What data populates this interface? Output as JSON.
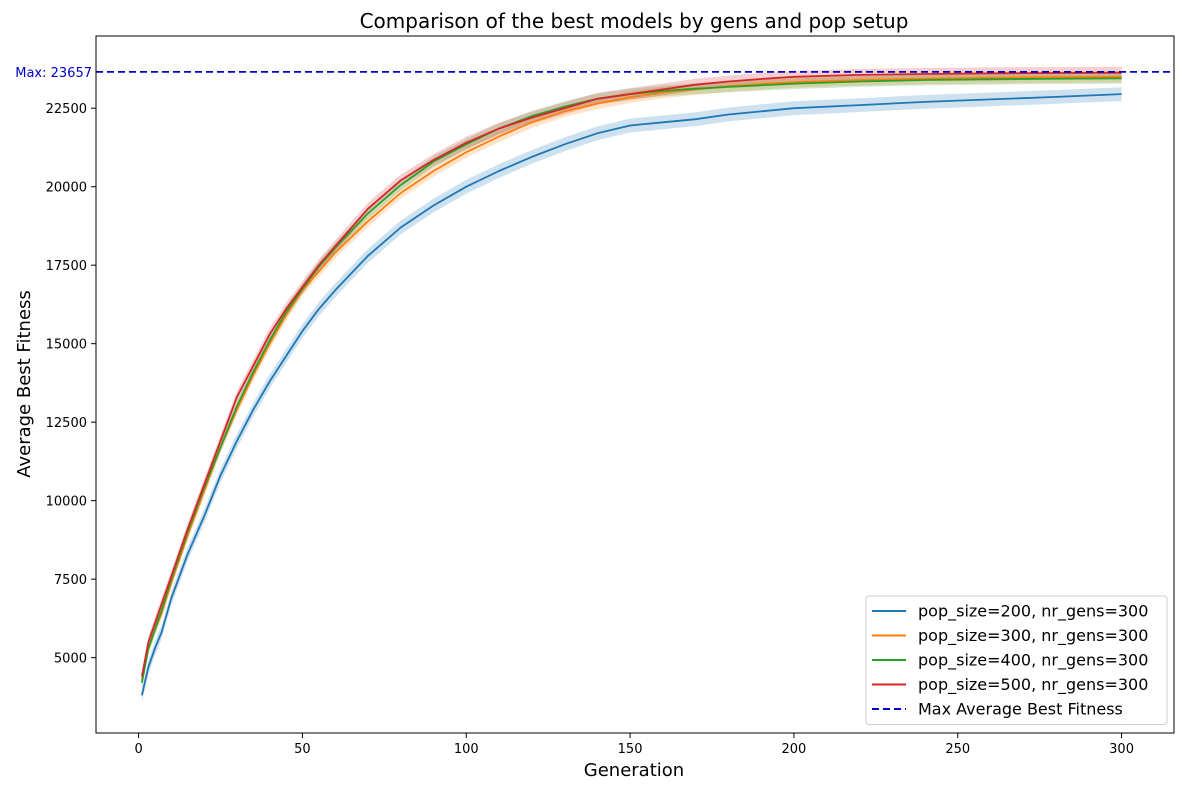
{
  "chart_data": {
    "type": "line",
    "title": "Comparison of the best models by gens and pop setup",
    "xlabel": "Generation",
    "ylabel": "Average Best Fitness",
    "xlim": [
      -13,
      316
    ],
    "ylim": [
      2600,
      24800
    ],
    "xticks": [
      0,
      50,
      100,
      150,
      200,
      250,
      300
    ],
    "yticks": [
      5000,
      7500,
      10000,
      12500,
      15000,
      17500,
      20000,
      22500
    ],
    "grid": false,
    "legend_position": "lower-right",
    "max_line": {
      "label": "Max Average Best Fitness",
      "value": 23657,
      "text": "Max: 23657",
      "color": "#0000cc",
      "style": "dashed"
    },
    "series": [
      {
        "name": "pop_size=200, nr_gens=300",
        "color": "#1f77b4",
        "band": 220,
        "x": [
          1,
          3,
          5,
          7,
          10,
          15,
          20,
          25,
          30,
          35,
          40,
          45,
          50,
          55,
          60,
          70,
          80,
          90,
          100,
          110,
          120,
          130,
          140,
          150,
          160,
          170,
          180,
          190,
          200,
          220,
          240,
          260,
          280,
          300
        ],
        "y": [
          3800,
          4700,
          5300,
          5800,
          6900,
          8300,
          9500,
          10800,
          11900,
          12900,
          13800,
          14600,
          15400,
          16100,
          16700,
          17800,
          18700,
          19400,
          20000,
          20500,
          20950,
          21350,
          21700,
          21950,
          22050,
          22150,
          22300,
          22400,
          22500,
          22600,
          22700,
          22780,
          22860,
          22950
        ]
      },
      {
        "name": "pop_size=300, nr_gens=300",
        "color": "#ff7f0e",
        "band": 180,
        "x": [
          1,
          3,
          5,
          7,
          10,
          15,
          20,
          25,
          30,
          35,
          40,
          45,
          50,
          55,
          60,
          70,
          80,
          90,
          100,
          110,
          120,
          130,
          140,
          150,
          160,
          170,
          180,
          190,
          200,
          220,
          240,
          260,
          280,
          300
        ],
        "y": [
          4300,
          5300,
          5900,
          6400,
          7400,
          8900,
          10300,
          11700,
          12900,
          14000,
          15000,
          15900,
          16700,
          17300,
          17900,
          18900,
          19800,
          20500,
          21100,
          21600,
          22050,
          22400,
          22650,
          22850,
          23000,
          23100,
          23200,
          23270,
          23330,
          23400,
          23440,
          23470,
          23490,
          23500
        ]
      },
      {
        "name": "pop_size=400, nr_gens=300",
        "color": "#2ca02c",
        "band": 170,
        "x": [
          1,
          3,
          5,
          7,
          10,
          15,
          20,
          25,
          30,
          35,
          40,
          45,
          50,
          55,
          60,
          70,
          80,
          90,
          100,
          110,
          120,
          130,
          140,
          150,
          160,
          170,
          180,
          190,
          200,
          220,
          240,
          260,
          280,
          300
        ],
        "y": [
          4200,
          5300,
          5900,
          6500,
          7500,
          9000,
          10400,
          11700,
          13000,
          14100,
          15100,
          16000,
          16750,
          17450,
          18050,
          19150,
          20050,
          20800,
          21350,
          21850,
          22250,
          22550,
          22800,
          22950,
          23050,
          23120,
          23180,
          23230,
          23280,
          23350,
          23400,
          23420,
          23440,
          23450
        ]
      },
      {
        "name": "pop_size=500, nr_gens=300",
        "color": "#d62728",
        "band": 190,
        "x": [
          1,
          3,
          5,
          7,
          10,
          15,
          20,
          25,
          30,
          35,
          40,
          45,
          50,
          55,
          60,
          70,
          80,
          90,
          100,
          110,
          120,
          130,
          140,
          150,
          160,
          170,
          180,
          190,
          200,
          220,
          240,
          260,
          280,
          300
        ],
        "y": [
          4400,
          5500,
          6100,
          6700,
          7600,
          9100,
          10500,
          11900,
          13300,
          14300,
          15300,
          16100,
          16800,
          17500,
          18100,
          19300,
          20200,
          20850,
          21400,
          21850,
          22200,
          22500,
          22800,
          22950,
          23100,
          23250,
          23350,
          23430,
          23500,
          23560,
          23590,
          23610,
          23620,
          23630
        ]
      }
    ]
  }
}
